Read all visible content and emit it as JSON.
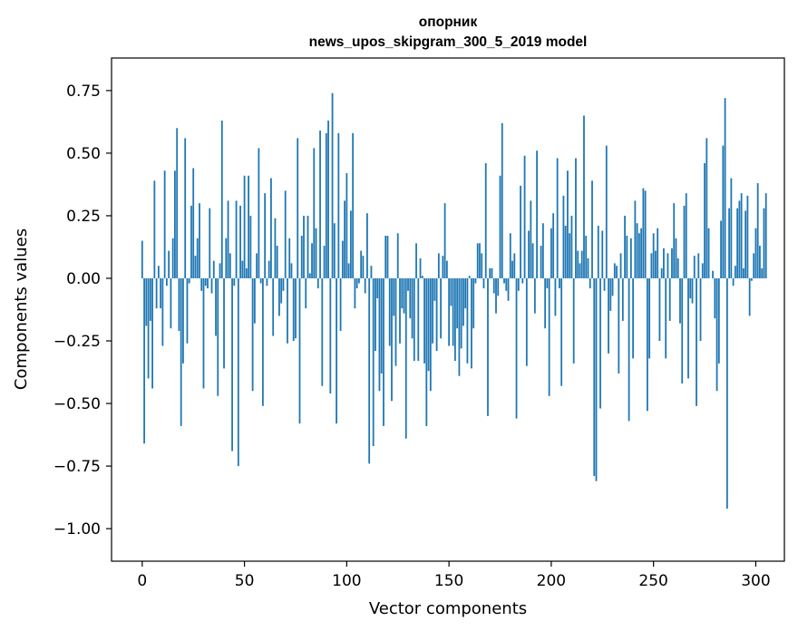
{
  "chart_data": {
    "type": "bar",
    "title_lines": [
      "опорник",
      "news_upos_skipgram_300_5_2019 model"
    ],
    "xlabel": "Vector components",
    "ylabel": "Components values",
    "xlim": [
      -15,
      314
    ],
    "ylim": [
      -1.13,
      0.88
    ],
    "x_ticks": [
      0,
      50,
      100,
      150,
      200,
      250,
      300
    ],
    "x_tick_labels": [
      "0",
      "50",
      "100",
      "150",
      "200",
      "250",
      "300"
    ],
    "y_ticks": [
      0.75,
      0.5,
      0.25,
      0.0,
      -0.25,
      -0.5,
      -0.75,
      -1.0
    ],
    "y_tick_labels": [
      "0.75",
      "0.50",
      "0.25",
      "0.00",
      "−0.25",
      "−0.50",
      "−0.75",
      "−1.00"
    ],
    "bar_color": "#1f77b4",
    "grid": false,
    "values": [
      0.15,
      -0.66,
      -0.19,
      -0.4,
      -0.17,
      -0.44,
      0.39,
      -0.12,
      0.05,
      -0.12,
      -0.27,
      0.43,
      -0.03,
      0.11,
      -0.2,
      0.16,
      0.43,
      0.6,
      -0.21,
      -0.59,
      -0.34,
      0.56,
      -0.26,
      -0.02,
      0.29,
      0.44,
      0.09,
      0.16,
      0.3,
      -0.05,
      -0.44,
      -0.03,
      -0.04,
      0.28,
      -0.06,
      0.07,
      -0.23,
      -0.47,
      0.06,
      0.63,
      -0.36,
      0.16,
      0.31,
      0.1,
      -0.69,
      -0.03,
      0.31,
      -0.75,
      0.29,
      0.07,
      0.41,
      0.04,
      0.41,
      0.25,
      -0.45,
      -0.18,
      0.1,
      0.52,
      -0.02,
      -0.51,
      0.34,
      -0.03,
      0.07,
      0.4,
      -0.23,
      0.24,
      0.13,
      -0.15,
      -0.1,
      -0.05,
      0.35,
      -0.26,
      0.16,
      0.06,
      -0.25,
      -0.24,
      0.56,
      -0.58,
      0.17,
      0.25,
      -0.12,
      0.25,
      0.02,
      0.14,
      0.52,
      0.2,
      -0.04,
      0.59,
      -0.43,
      0.13,
      0.58,
      0.63,
      -0.46,
      0.74,
      0.22,
      -0.58,
      0.58,
      -0.21,
      0.15,
      0.31,
      0.42,
      0.06,
      0.27,
      0.58,
      -0.12,
      -0.04,
      -0.02,
      0.11,
      0.09,
      -0.06,
      0.26,
      -0.74,
      0.05,
      -0.67,
      -0.29,
      -0.08,
      -0.45,
      -0.38,
      -0.59,
      0.17,
      0.17,
      -0.27,
      -0.49,
      -0.15,
      -0.35,
      0.18,
      -0.26,
      -0.12,
      -0.14,
      -0.64,
      -0.05,
      -0.16,
      -0.24,
      -0.33,
      0.14,
      -0.33,
      0.08,
      0.01,
      -0.34,
      -0.59,
      -0.37,
      -0.45,
      -0.26,
      -0.09,
      -0.29,
      0.1,
      -0.24,
      0.09,
      0.3,
      0.07,
      -0.27,
      -0.11,
      -0.27,
      -0.33,
      -0.2,
      -0.39,
      -0.28,
      -0.19,
      -0.12,
      -0.34,
      0.01,
      -0.36,
      -0.2,
      -0.02,
      0.14,
      0.14,
      0.1,
      -0.04,
      0.46,
      -0.55,
      0.04,
      0.04,
      -0.06,
      -0.14,
      -0.07,
      0.41,
      0.62,
      -0.02,
      -0.05,
      -0.09,
      0.18,
      0.07,
      0.1,
      -0.56,
      -0.05,
      0.37,
      -0.02,
      0.49,
      -0.35,
      0.19,
      0.31,
      0.14,
      -0.14,
      0.51,
      0.0,
      0.13,
      0.22,
      -0.2,
      -0.04,
      -0.47,
      0.2,
      0.26,
      -0.15,
      0.48,
      -0.04,
      -0.43,
      0.33,
      0.21,
      0.43,
      0.18,
      0.25,
      -0.34,
      0.48,
      0.11,
      0.06,
      0.11,
      0.65,
      0.17,
      0.08,
      -0.04,
      0.39,
      -0.79,
      -0.81,
      0.21,
      -0.52,
      0.19,
      -0.05,
      0.53,
      -0.3,
      -0.13,
      -0.07,
      0.06,
      0.05,
      -0.38,
      0.1,
      -0.17,
      0.25,
      0.17,
      -0.57,
      0.16,
      -0.32,
      0.31,
      0.22,
      0.18,
      0.2,
      0.36,
      0.35,
      -0.53,
      -0.32,
      0.1,
      0.18,
      0.11,
      0.2,
      -0.25,
      0.04,
      0.12,
      -0.32,
      0.1,
      -0.17,
      0.12,
      0.3,
      0.16,
      0.08,
      -0.18,
      -0.42,
      0.29,
      0.34,
      -0.4,
      -0.08,
      -0.1,
      0.09,
      -0.51,
      0.1,
      -0.25,
      0.06,
      0.46,
      0.56,
      0.2,
      0.0,
      0.03,
      -0.16,
      -0.45,
      -0.34,
      0.23,
      0.53,
      0.72,
      -0.92,
      0.28,
      0.4,
      -0.03,
      0.05,
      0.28,
      0.31,
      0.34,
      0.04,
      0.27,
      0.33,
      -0.15,
      -0.01,
      0.1,
      0.2,
      0.38,
      0.13,
      0.04,
      0.28,
      0.34
    ]
  }
}
